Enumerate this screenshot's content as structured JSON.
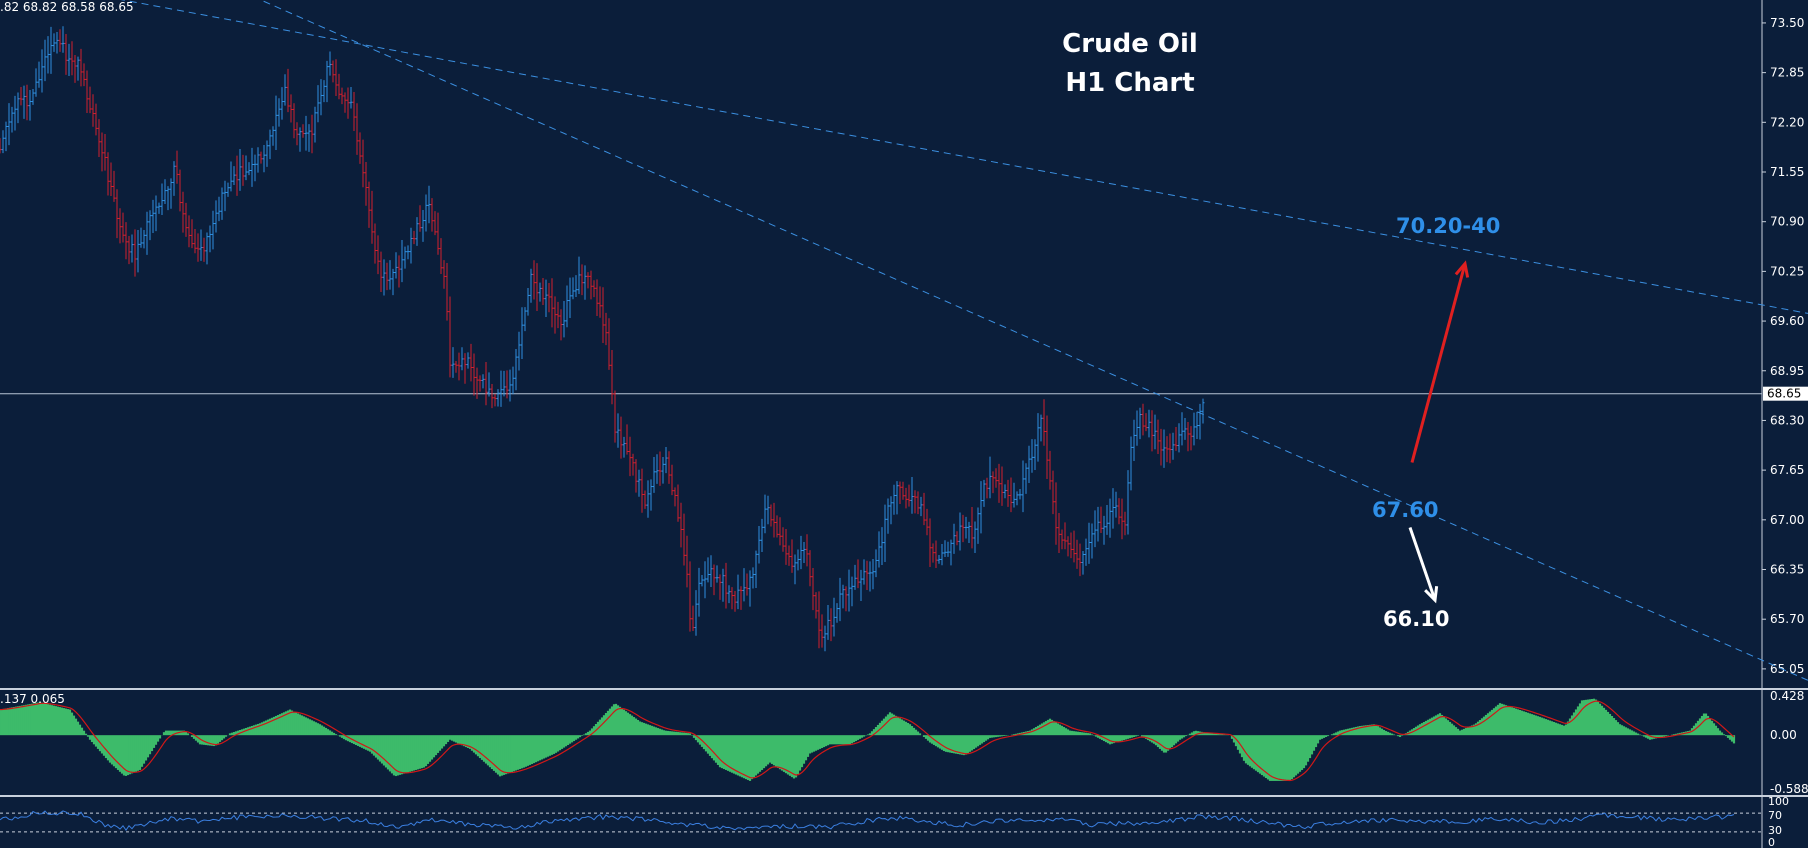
{
  "colors": {
    "background": "#0b1e3a",
    "bull_bar": "#2f8fe0",
    "bear_bar": "#d0202e",
    "trendline": "#3b8fe0",
    "macd_hist": "#3dbb6a",
    "macd_signal": "#d01818",
    "rsi_line": "#3b7fe0",
    "level_label_blue": "#2f8fe8",
    "level_label_white": "#ffffff",
    "up_arrow": "#e02020",
    "down_arrow": "#ffffff"
  },
  "ohlc_header": ".82 68.82 68.58 68.65",
  "macd_header": ".137 0.065",
  "title": {
    "line1": "Crude Oil",
    "line2": "H1 Chart"
  },
  "annotations": {
    "upper_target": "70.20-40",
    "pivot": "67.60",
    "lower_target": "66.10"
  },
  "chart_data": [
    {
      "type": "candlestick",
      "title": "Crude Oil H1 Chart",
      "ylim": [
        64.8,
        73.8
      ],
      "y_ticks": [
        "73.50",
        "72.85",
        "72.20",
        "71.55",
        "70.90",
        "70.25",
        "69.60",
        "68.95",
        "68.30",
        "67.65",
        "67.00",
        "66.35",
        "65.70",
        "65.05"
      ],
      "current_price": "68.65",
      "anchors": [
        [
          0,
          71.9
        ],
        [
          15,
          72.4
        ],
        [
          30,
          72.5
        ],
        [
          48,
          73.1
        ],
        [
          55,
          73.35
        ],
        [
          65,
          73.1
        ],
        [
          80,
          72.9
        ],
        [
          95,
          72.2
        ],
        [
          110,
          71.4
        ],
        [
          125,
          70.6
        ],
        [
          135,
          70.5
        ],
        [
          150,
          71.0
        ],
        [
          165,
          71.3
        ],
        [
          175,
          71.6
        ],
        [
          185,
          70.8
        ],
        [
          195,
          70.5
        ],
        [
          205,
          70.6
        ],
        [
          215,
          71.0
        ],
        [
          230,
          71.4
        ],
        [
          245,
          71.6
        ],
        [
          260,
          71.7
        ],
        [
          275,
          72.2
        ],
        [
          285,
          72.6
        ],
        [
          295,
          72.1
        ],
        [
          310,
          72.0
        ],
        [
          320,
          72.5
        ],
        [
          330,
          73.0
        ],
        [
          340,
          72.6
        ],
        [
          350,
          72.5
        ],
        [
          360,
          71.8
        ],
        [
          370,
          70.9
        ],
        [
          380,
          70.2
        ],
        [
          390,
          70.2
        ],
        [
          400,
          70.3
        ],
        [
          410,
          70.6
        ],
        [
          420,
          70.9
        ],
        [
          428,
          71.1
        ],
        [
          438,
          70.5
        ],
        [
          445,
          70.2
        ],
        [
          450,
          69.0
        ],
        [
          465,
          69.1
        ],
        [
          480,
          68.8
        ],
        [
          495,
          68.6
        ],
        [
          510,
          68.7
        ],
        [
          520,
          69.3
        ],
        [
          530,
          70.2
        ],
        [
          540,
          70.0
        ],
        [
          550,
          69.9
        ],
        [
          560,
          69.5
        ],
        [
          570,
          69.9
        ],
        [
          580,
          70.2
        ],
        [
          592,
          70.1
        ],
        [
          605,
          69.5
        ],
        [
          615,
          68.2
        ],
        [
          625,
          67.9
        ],
        [
          635,
          67.6
        ],
        [
          645,
          67.2
        ],
        [
          655,
          67.6
        ],
        [
          665,
          67.8
        ],
        [
          675,
          67.3
        ],
        [
          685,
          66.5
        ],
        [
          692,
          65.5
        ],
        [
          700,
          66.2
        ],
        [
          712,
          66.3
        ],
        [
          722,
          66.2
        ],
        [
          732,
          66.0
        ],
        [
          742,
          66.0
        ],
        [
          752,
          66.2
        ],
        [
          765,
          67.2
        ],
        [
          775,
          66.9
        ],
        [
          785,
          66.6
        ],
        [
          795,
          66.4
        ],
        [
          805,
          66.7
        ],
        [
          812,
          66.1
        ],
        [
          820,
          65.5
        ],
        [
          828,
          65.6
        ],
        [
          840,
          66.0
        ],
        [
          855,
          66.2
        ],
        [
          870,
          66.3
        ],
        [
          880,
          66.6
        ],
        [
          890,
          67.3
        ],
        [
          900,
          67.4
        ],
        [
          912,
          67.3
        ],
        [
          922,
          67.2
        ],
        [
          932,
          66.6
        ],
        [
          942,
          66.5
        ],
        [
          952,
          66.7
        ],
        [
          962,
          66.9
        ],
        [
          975,
          66.8
        ],
        [
          985,
          67.5
        ],
        [
          995,
          67.5
        ],
        [
          1005,
          67.4
        ],
        [
          1015,
          67.2
        ],
        [
          1025,
          67.6
        ],
        [
          1035,
          68.0
        ],
        [
          1042,
          68.3
        ],
        [
          1050,
          67.5
        ],
        [
          1058,
          66.8
        ],
        [
          1068,
          66.6
        ],
        [
          1078,
          66.4
        ],
        [
          1085,
          66.6
        ],
        [
          1095,
          66.9
        ],
        [
          1105,
          67.0
        ],
        [
          1115,
          67.2
        ],
        [
          1125,
          67.0
        ],
        [
          1130,
          67.9
        ],
        [
          1140,
          68.3
        ],
        [
          1150,
          68.2
        ],
        [
          1160,
          68.0
        ],
        [
          1170,
          67.9
        ],
        [
          1180,
          68.1
        ],
        [
          1190,
          68.1
        ],
        [
          1200,
          68.4
        ],
        [
          1205,
          68.65
        ]
      ],
      "trendlines": [
        {
          "points": [
            [
              0,
              74.1
            ],
            [
              1808,
              69.7
            ]
          ]
        },
        {
          "points": [
            [
              0,
              75.3
            ],
            [
              1808,
              64.9
            ]
          ]
        }
      ],
      "horizontal_line": 68.65,
      "target_arrows": [
        {
          "direction": "up",
          "from": [
            1412,
            67.75
          ],
          "to": [
            1465,
            70.35
          ]
        },
        {
          "direction": "down",
          "from": [
            1410,
            66.9
          ],
          "to": [
            1435,
            65.95
          ]
        }
      ]
    },
    {
      "type": "histogram",
      "name": "MACD",
      "ylim": [
        -0.588,
        0.428
      ],
      "y_ticks": [
        "0.428",
        "0.00",
        "-0.588"
      ],
      "anchors": [
        [
          0,
          0.28
        ],
        [
          40,
          0.36
        ],
        [
          70,
          0.28
        ],
        [
          90,
          -0.05
        ],
        [
          110,
          -0.3
        ],
        [
          125,
          -0.45
        ],
        [
          140,
          -0.38
        ],
        [
          165,
          0.05
        ],
        [
          185,
          0.05
        ],
        [
          200,
          -0.1
        ],
        [
          215,
          -0.12
        ],
        [
          230,
          0.02
        ],
        [
          260,
          0.13
        ],
        [
          290,
          0.28
        ],
        [
          320,
          0.12
        ],
        [
          345,
          -0.05
        ],
        [
          370,
          -0.18
        ],
        [
          395,
          -0.45
        ],
        [
          425,
          -0.35
        ],
        [
          450,
          -0.05
        ],
        [
          470,
          -0.15
        ],
        [
          500,
          -0.45
        ],
        [
          525,
          -0.35
        ],
        [
          555,
          -0.2
        ],
        [
          590,
          0.05
        ],
        [
          615,
          0.35
        ],
        [
          640,
          0.15
        ],
        [
          665,
          0.05
        ],
        [
          690,
          0.02
        ],
        [
          720,
          -0.35
        ],
        [
          750,
          -0.5
        ],
        [
          770,
          -0.3
        ],
        [
          795,
          -0.48
        ],
        [
          810,
          -0.2
        ],
        [
          830,
          -0.1
        ],
        [
          850,
          -0.1
        ],
        [
          870,
          0.02
        ],
        [
          890,
          0.25
        ],
        [
          910,
          0.12
        ],
        [
          930,
          -0.08
        ],
        [
          945,
          -0.18
        ],
        [
          965,
          -0.22
        ],
        [
          990,
          -0.03
        ],
        [
          1010,
          0.0
        ],
        [
          1030,
          0.05
        ],
        [
          1050,
          0.18
        ],
        [
          1070,
          0.05
        ],
        [
          1090,
          0.02
        ],
        [
          1110,
          -0.1
        ],
        [
          1125,
          -0.05
        ],
        [
          1140,
          0.0
        ],
        [
          1155,
          -0.1
        ],
        [
          1165,
          -0.2
        ],
        [
          1180,
          -0.05
        ],
        [
          1195,
          0.05
        ],
        [
          1210,
          0.02
        ],
        [
          1230,
          0.0
        ],
        [
          1245,
          -0.3
        ],
        [
          1270,
          -0.5
        ],
        [
          1290,
          -0.5
        ],
        [
          1305,
          -0.35
        ],
        [
          1320,
          -0.05
        ],
        [
          1340,
          0.05
        ],
        [
          1360,
          0.1
        ],
        [
          1375,
          0.12
        ],
        [
          1385,
          0.05
        ],
        [
          1400,
          -0.02
        ],
        [
          1420,
          0.12
        ],
        [
          1440,
          0.24
        ],
        [
          1460,
          0.05
        ],
        [
          1475,
          0.12
        ],
        [
          1500,
          0.35
        ],
        [
          1540,
          0.2
        ],
        [
          1565,
          0.1
        ],
        [
          1582,
          0.38
        ],
        [
          1595,
          0.4
        ],
        [
          1620,
          0.12
        ],
        [
          1650,
          -0.05
        ],
        [
          1670,
          0.0
        ],
        [
          1690,
          0.05
        ],
        [
          1705,
          0.25
        ],
        [
          1720,
          0.05
        ],
        [
          1735,
          -0.1
        ]
      ]
    },
    {
      "type": "line",
      "name": "RSI",
      "ylim": [
        0,
        100
      ],
      "y_ticks": [
        "100",
        "70",
        "30",
        "0"
      ],
      "levels": [
        70,
        30
      ],
      "anchors": [
        [
          0,
          55
        ],
        [
          40,
          72
        ],
        [
          80,
          68
        ],
        [
          110,
          40
        ],
        [
          130,
          38
        ],
        [
          170,
          58
        ],
        [
          200,
          52
        ],
        [
          230,
          60
        ],
        [
          280,
          66
        ],
        [
          330,
          58
        ],
        [
          360,
          55
        ],
        [
          400,
          40
        ],
        [
          430,
          55
        ],
        [
          470,
          45
        ],
        [
          520,
          40
        ],
        [
          560,
          55
        ],
        [
          600,
          62
        ],
        [
          640,
          58
        ],
        [
          690,
          45
        ],
        [
          740,
          38
        ],
        [
          790,
          42
        ],
        [
          830,
          40
        ],
        [
          870,
          55
        ],
        [
          900,
          60
        ],
        [
          930,
          50
        ],
        [
          960,
          45
        ],
        [
          1000,
          55
        ],
        [
          1030,
          52
        ],
        [
          1060,
          60
        ],
        [
          1090,
          45
        ],
        [
          1120,
          48
        ],
        [
          1160,
          50
        ],
        [
          1200,
          62
        ],
        [
          1240,
          58
        ],
        [
          1270,
          48
        ],
        [
          1300,
          40
        ],
        [
          1340,
          50
        ],
        [
          1380,
          55
        ],
        [
          1420,
          52
        ],
        [
          1460,
          52
        ],
        [
          1500,
          58
        ],
        [
          1540,
          50
        ],
        [
          1570,
          55
        ],
        [
          1600,
          66
        ],
        [
          1640,
          60
        ],
        [
          1680,
          55
        ],
        [
          1710,
          62
        ],
        [
          1735,
          62
        ]
      ]
    }
  ]
}
